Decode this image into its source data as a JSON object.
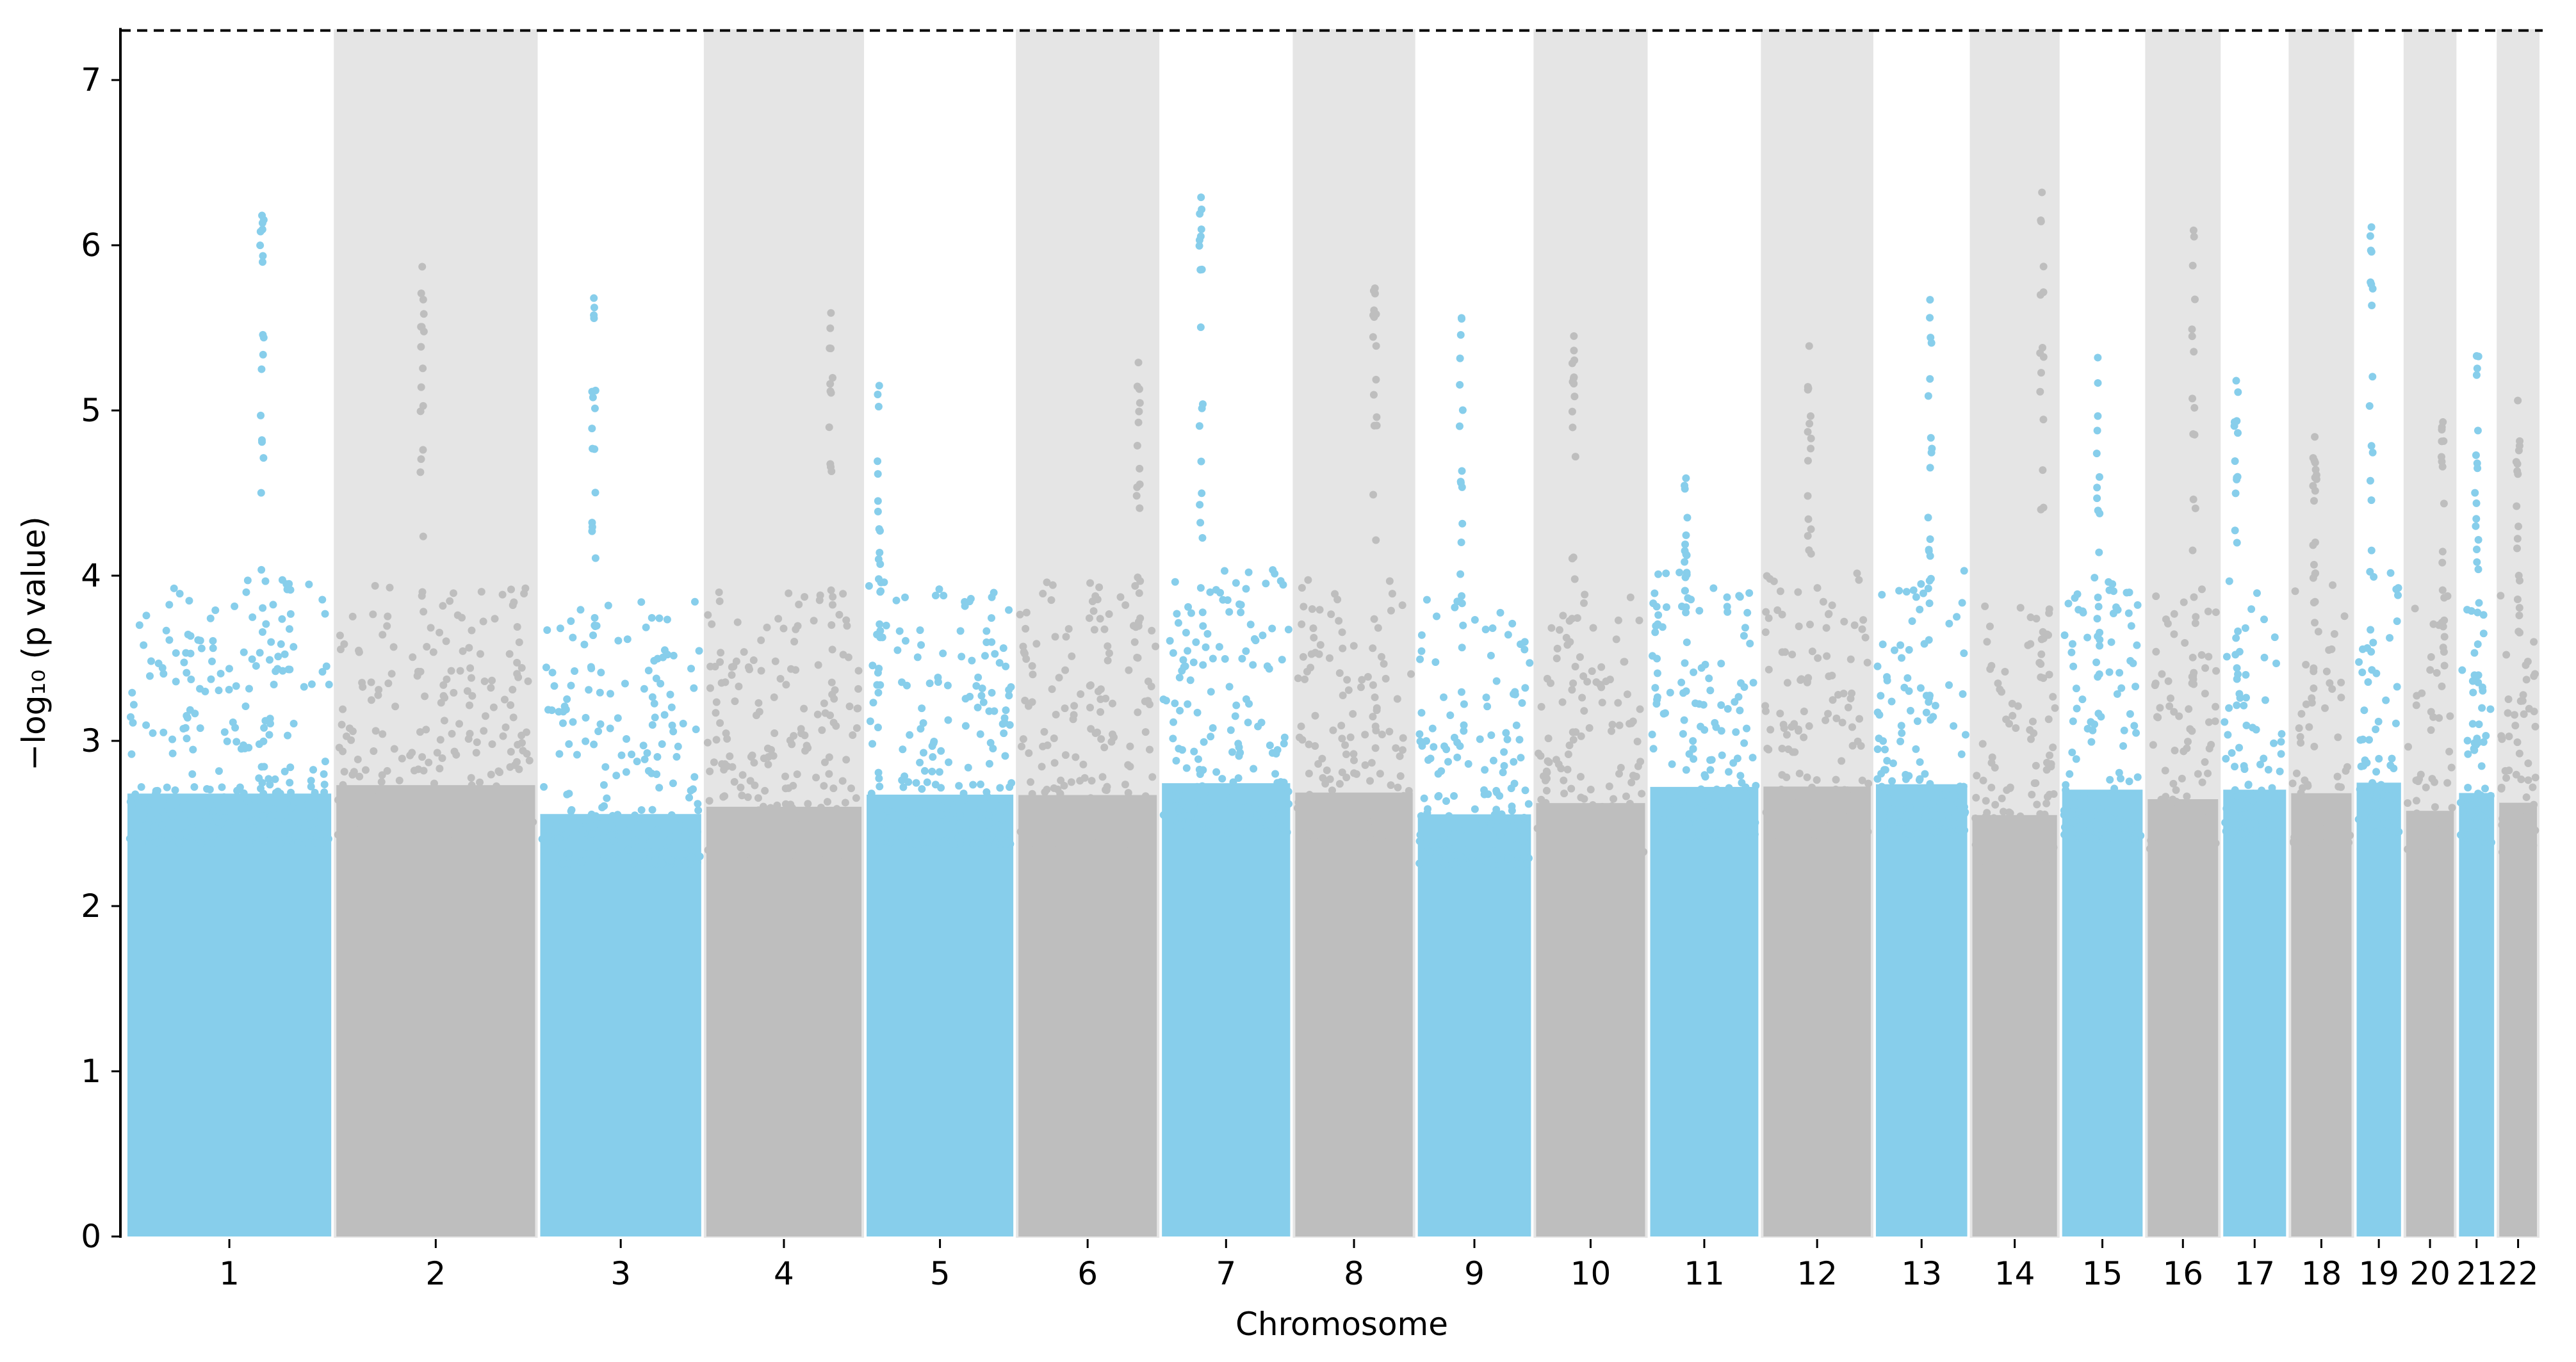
{
  "chart_data": {
    "type": "scatter",
    "subtype": "manhattan",
    "title": "",
    "xlabel": "Chromosome",
    "ylabel": "−log₁₀ (p value)",
    "ylim": [
      0,
      7.3
    ],
    "yticks": [
      "0",
      "1",
      "2",
      "3",
      "4",
      "5",
      "6",
      "7"
    ],
    "significance_threshold": 7.3,
    "colors": {
      "odd": "#87CEEB",
      "even": "#BEBEBE",
      "band": "#E5E5E5",
      "threshold": "#000000"
    },
    "chromosomes": [
      {
        "label": "1",
        "length_mb": 249,
        "max_log10p": 6.18
      },
      {
        "label": "2",
        "length_mb": 243,
        "max_log10p": 5.87
      },
      {
        "label": "3",
        "length_mb": 198,
        "max_log10p": 5.68
      },
      {
        "label": "4",
        "length_mb": 191,
        "max_log10p": 5.59
      },
      {
        "label": "5",
        "length_mb": 181,
        "max_log10p": 5.15
      },
      {
        "label": "6",
        "length_mb": 171,
        "max_log10p": 5.29
      },
      {
        "label": "7",
        "length_mb": 159,
        "max_log10p": 6.29
      },
      {
        "label": "8",
        "length_mb": 146,
        "max_log10p": 5.74
      },
      {
        "label": "9",
        "length_mb": 141,
        "max_log10p": 5.56
      },
      {
        "label": "10",
        "length_mb": 136,
        "max_log10p": 5.45
      },
      {
        "label": "11",
        "length_mb": 135,
        "max_log10p": 4.59
      },
      {
        "label": "12",
        "length_mb": 134,
        "max_log10p": 5.39
      },
      {
        "label": "13",
        "length_mb": 115,
        "max_log10p": 5.67
      },
      {
        "label": "14",
        "length_mb": 107,
        "max_log10p": 6.32
      },
      {
        "label": "15",
        "length_mb": 102,
        "max_log10p": 5.32
      },
      {
        "label": "16",
        "length_mb": 90,
        "max_log10p": 6.09
      },
      {
        "label": "17",
        "length_mb": 81,
        "max_log10p": 5.18
      },
      {
        "label": "18",
        "length_mb": 78,
        "max_log10p": 4.84
      },
      {
        "label": "19",
        "length_mb": 59,
        "max_log10p": 6.11
      },
      {
        "label": "20",
        "length_mb": 63,
        "max_log10p": 4.93
      },
      {
        "label": "21",
        "length_mb": 48,
        "max_log10p": 5.33
      },
      {
        "label": "22",
        "length_mb": 51,
        "max_log10p": 5.06
      }
    ]
  }
}
